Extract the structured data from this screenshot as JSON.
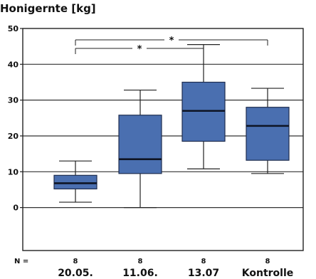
{
  "chart_data": {
    "type": "box",
    "title": "Honigernte [kg]",
    "ylim": [
      -12,
      50
    ],
    "yticks": [
      0,
      10,
      20,
      30,
      40,
      50
    ],
    "n_label": "N =",
    "categories": [
      "20.05.",
      "11.06.",
      "13.07",
      "Kontrolle"
    ],
    "n_values": [
      "8",
      "8",
      "8",
      "8"
    ],
    "boxes": [
      {
        "min": 1.5,
        "q1": 5.2,
        "median": 6.8,
        "q3": 9.0,
        "max": 13.0
      },
      {
        "min": 0.0,
        "q1": 9.5,
        "median": 13.5,
        "q3": 25.8,
        "max": 32.8
      },
      {
        "min": 10.8,
        "q1": 18.5,
        "median": 27.0,
        "q3": 35.0,
        "max": 45.5
      },
      {
        "min": 9.5,
        "q1": 13.2,
        "median": 22.8,
        "q3": 28.0,
        "max": 33.3
      }
    ],
    "box_color": "#4a6fb0",
    "box_edge": "#1e2d4f",
    "significance": [
      {
        "from": 0,
        "to": 3,
        "label": "*"
      },
      {
        "from": 0,
        "to": 2,
        "label": "*"
      }
    ],
    "grid": true
  }
}
